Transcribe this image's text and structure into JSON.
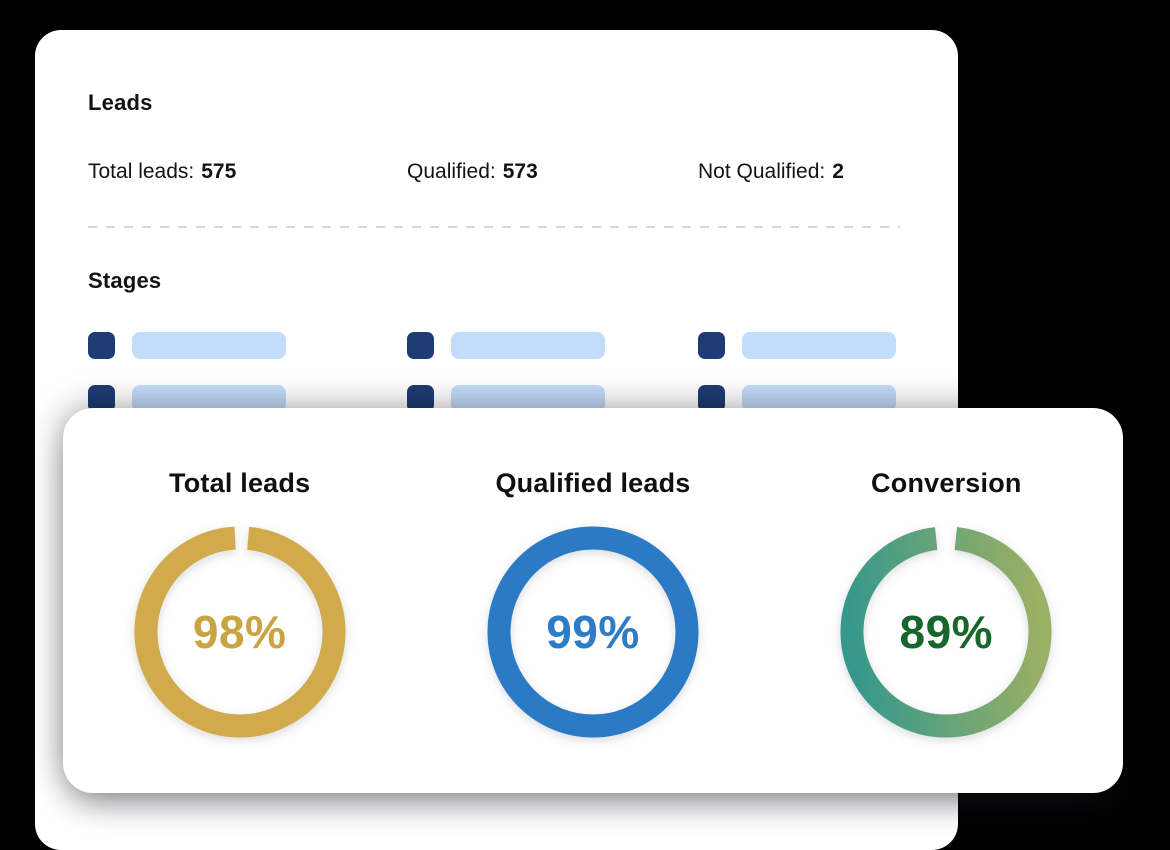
{
  "back_card": {
    "leads": {
      "title": "Leads",
      "stats": [
        {
          "label": "Total leads:",
          "value": "575"
        },
        {
          "label": "Qualified:",
          "value": "573"
        },
        {
          "label": "Not Qualified:",
          "value": "2"
        }
      ]
    },
    "stages": {
      "title": "Stages",
      "placeholder_rows": 2,
      "placeholder_columns": 3
    }
  },
  "front_card": {
    "metrics": [
      {
        "label": "Total leads",
        "percent": 98,
        "percent_label": "98%",
        "ring_color": "#d1aa4b",
        "text_color": "#c9a443"
      },
      {
        "label": "Qualified leads",
        "percent": 99,
        "percent_label": "99%",
        "ring_color": "#2b7ac6",
        "text_color": "#2e7cc6"
      },
      {
        "label": "Conversion",
        "percent": 89,
        "percent_label": "89%",
        "ring_gradient": [
          "#36988c",
          "#9ab064"
        ],
        "text_color": "#17672c"
      }
    ]
  },
  "colors": {
    "background": "#000000",
    "card": "#ffffff",
    "text": "#131313",
    "divider": "#d7d7da",
    "stage_square": "#1d3c74",
    "stage_bar": "#c3dcfa"
  },
  "chart_data": [
    {
      "type": "pie",
      "title": "Total leads",
      "labels": [
        "value",
        "remaining"
      ],
      "values": [
        98,
        2
      ],
      "unit": "%"
    },
    {
      "type": "pie",
      "title": "Qualified leads",
      "labels": [
        "value",
        "remaining"
      ],
      "values": [
        99,
        1
      ],
      "unit": "%"
    },
    {
      "type": "pie",
      "title": "Conversion",
      "labels": [
        "value",
        "remaining"
      ],
      "values": [
        89,
        11
      ],
      "unit": "%"
    }
  ]
}
